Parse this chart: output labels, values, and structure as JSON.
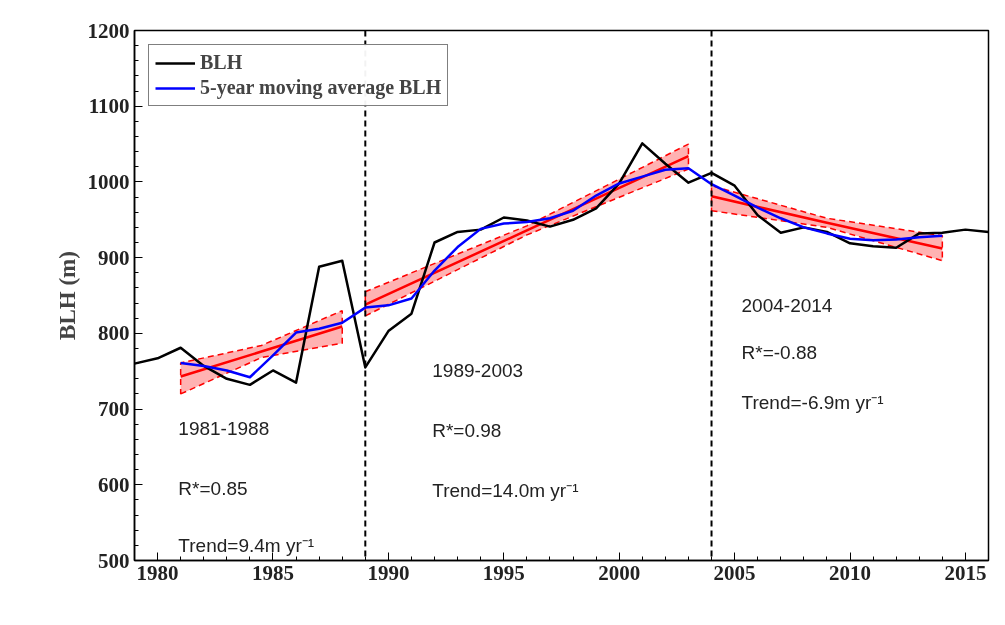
{
  "chart_data": {
    "type": "line",
    "ylabel": "BLH (m)",
    "xlim": [
      1979,
      2016
    ],
    "xticks": [
      1980,
      1985,
      1990,
      1995,
      2000,
      2005,
      2010,
      2015
    ],
    "ylim": [
      500,
      1200
    ],
    "yticks": [
      500,
      600,
      700,
      800,
      900,
      1000,
      1100,
      1200
    ],
    "grid": false,
    "legend": "top left",
    "series": [
      {
        "name": "BLH",
        "color": "#000000",
        "x": [
          1979,
          1980,
          1981,
          1982,
          1983,
          1984,
          1985,
          1986,
          1987,
          1988,
          1989,
          1990,
          1991,
          1992,
          1993,
          1994,
          1995,
          1996,
          1997,
          1998,
          1999,
          2000,
          2001,
          2002,
          2003,
          2004,
          2005,
          2006,
          2007,
          2008,
          2009,
          2010,
          2011,
          2012,
          2013,
          2014,
          2015,
          2016
        ],
        "values": [
          760,
          767,
          781,
          757,
          740,
          732,
          751,
          735,
          888,
          896,
          755,
          803,
          826,
          920,
          934,
          937,
          953,
          949,
          941,
          950,
          965,
          998,
          1051,
          1024,
          999,
          1012,
          995,
          956,
          933,
          940,
          934,
          919,
          915,
          913,
          932,
          933,
          937,
          934
        ]
      },
      {
        "name": "5-year moving average BLH",
        "color": "#0000ff",
        "x": [
          1981,
          1982,
          1983,
          1984,
          1985,
          1986,
          1987,
          1988,
          1989,
          1990,
          1991,
          1992,
          1993,
          1994,
          1995,
          1996,
          1997,
          1998,
          1999,
          2000,
          2001,
          2002,
          2003,
          2004,
          2005,
          2006,
          2007,
          2008,
          2009,
          2010,
          2011,
          2012,
          2013,
          2014
        ],
        "values": [
          761,
          757,
          751,
          742,
          771,
          801,
          806,
          814,
          834,
          837,
          846,
          883,
          914,
          938,
          945,
          947,
          952,
          962,
          982,
          998,
          1007,
          1016,
          1018,
          997,
          982,
          966,
          952,
          940,
          932,
          925,
          923,
          924,
          927,
          929
        ]
      },
      {
        "color": "#ff0000",
        "x": [
          1981,
          1984.5,
          1988
        ],
        "values": [
          743,
          776,
          809
        ],
        "lower": [
          720,
          768,
          787
        ],
        "upper": [
          761,
          784,
          830
        ]
      },
      {
        "color": "#ff0000",
        "x": [
          1989,
          1996,
          2003
        ],
        "values": [
          838,
          936,
          1034
        ],
        "lower": [
          823,
          930,
          1017
        ],
        "upper": [
          855,
          942,
          1050
        ]
      },
      {
        "color": "#ff0000",
        "x": [
          2004,
          2009,
          2014
        ],
        "values": [
          981,
          946,
          912
        ],
        "lower": [
          962,
          940,
          896
        ],
        "upper": [
          995,
          952,
          929
        ]
      }
    ],
    "ref_lines": [
      {
        "axis": "x",
        "value": 1989,
        "color": "#000000",
        "line_style": "dashed"
      },
      {
        "axis": "x",
        "value": 2004,
        "color": "#000000",
        "line_style": "dashed"
      }
    ],
    "annotations": [
      "1981-1988",
      "R*=0.85",
      "Trend=9.4m yr⁻¹",
      "1989-2003",
      "R*=0.98",
      "Trend=14.0m yr⁻¹",
      "2004-2014",
      "R*=-0.88",
      "Trend=-6.9m yr⁻¹"
    ]
  }
}
